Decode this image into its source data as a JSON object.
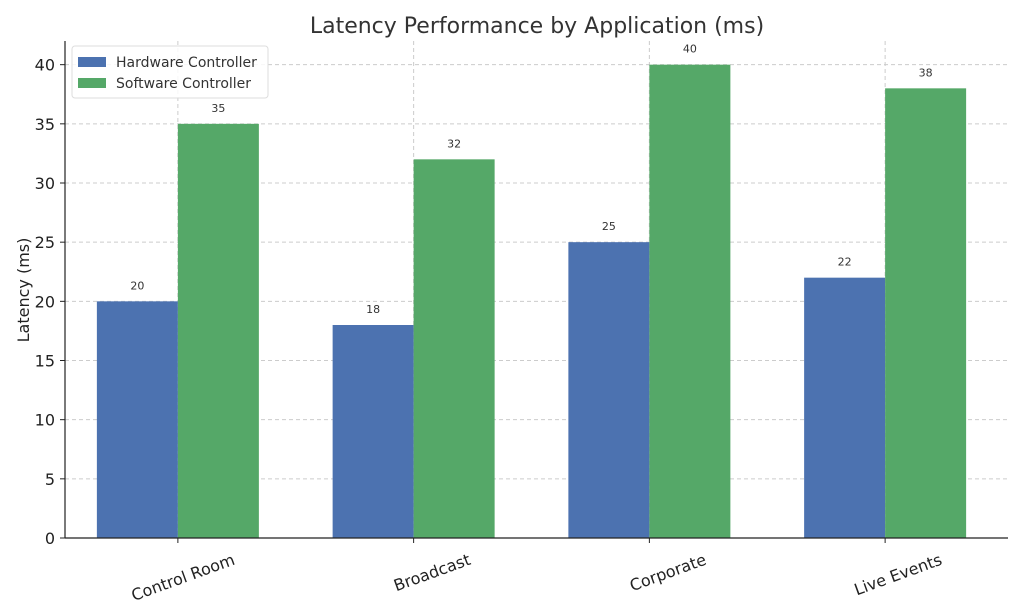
{
  "chart_data": {
    "type": "bar",
    "title": "Latency Performance by Application (ms)",
    "xlabel": "",
    "ylabel": "Latency (ms)",
    "categories": [
      "Control Room",
      "Broadcast",
      "Corporate",
      "Live Events"
    ],
    "series": [
      {
        "name": "Hardware Controller",
        "values": [
          20,
          18,
          25,
          22
        ],
        "color": "#4c72b0"
      },
      {
        "name": "Software Controller",
        "values": [
          35,
          32,
          40,
          38
        ],
        "color": "#55a868"
      }
    ],
    "ylim": [
      0,
      42
    ],
    "yticks": [
      0,
      5,
      10,
      15,
      20,
      25,
      30,
      35,
      40
    ],
    "grid": true,
    "legend_position": "top-left",
    "xtick_rotation": "rotated"
  }
}
